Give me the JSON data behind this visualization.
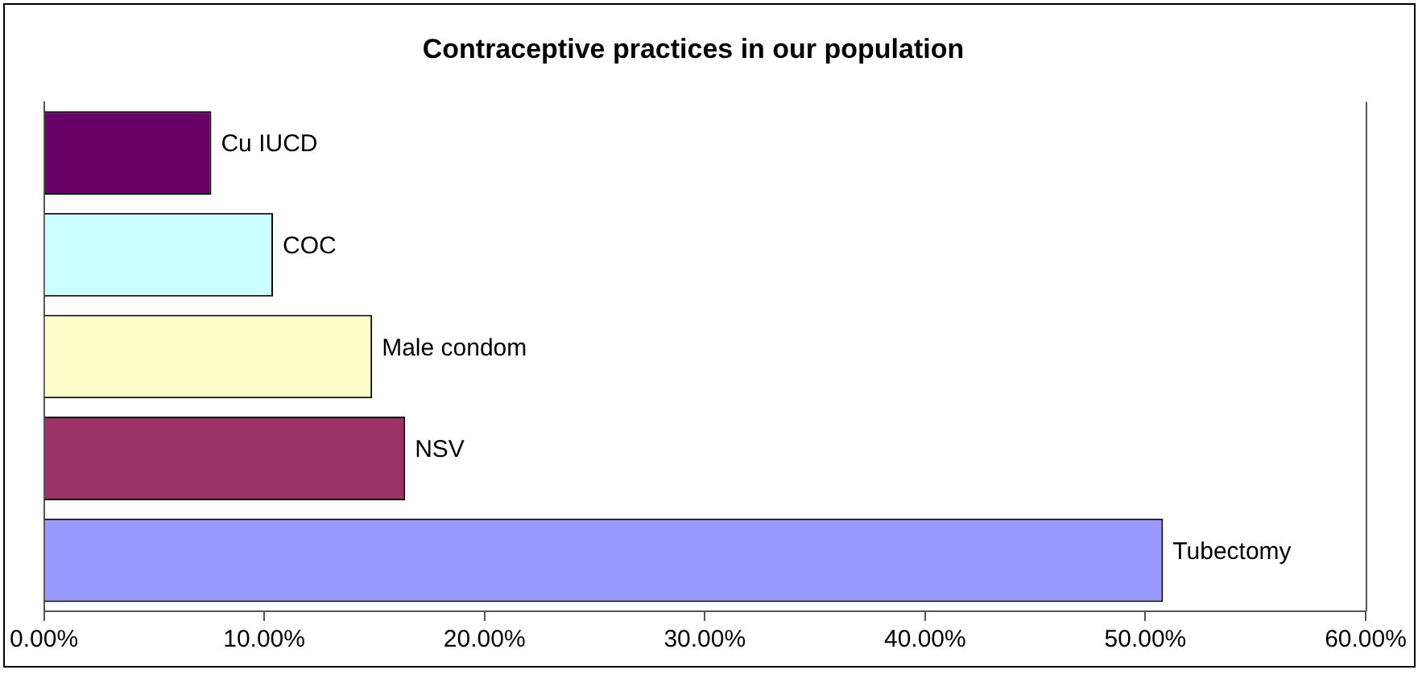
{
  "chart_data": {
    "type": "bar",
    "orientation": "horizontal",
    "title": "Contraceptive practices in our population",
    "categories": [
      "Cu IUCD",
      "COC",
      "Male condom",
      "NSV",
      "Tubectomy"
    ],
    "values": [
      7.6,
      10.4,
      14.9,
      16.4,
      50.8
    ],
    "colors": [
      "#660066",
      "#ccffff",
      "#ffffcc",
      "#993366",
      "#9999ff"
    ],
    "xlim": [
      0,
      60
    ],
    "xticks": [
      {
        "value": 0,
        "label": "0.00%"
      },
      {
        "value": 10,
        "label": "10.00%"
      },
      {
        "value": 20,
        "label": "20.00%"
      },
      {
        "value": 30,
        "label": "30.00%"
      },
      {
        "value": 40,
        "label": "40.00%"
      },
      {
        "value": 50,
        "label": "50.00%"
      },
      {
        "value": 60,
        "label": "60.00%"
      }
    ],
    "grid": false,
    "legend": false,
    "tick_labels": "x"
  }
}
